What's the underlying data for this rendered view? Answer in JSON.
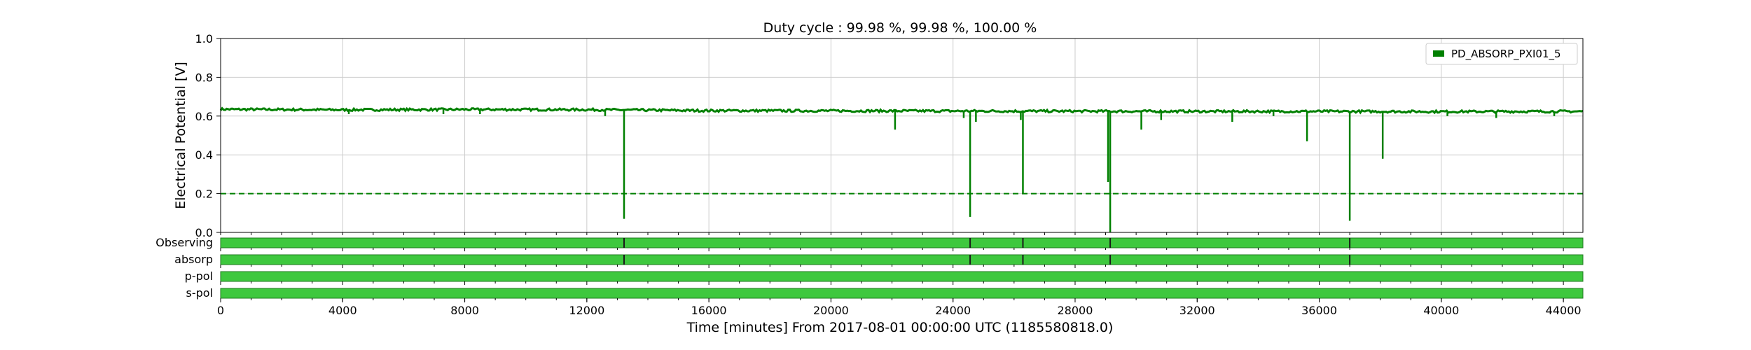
{
  "chart_data": {
    "type": "line",
    "title": "Duty cycle : 99.98 %, 99.98 %, 100.00 %",
    "xlabel": "Time [minutes] From 2017-08-01 00:00:00 UTC (1185580818.0)",
    "ylabel": "Electrical Potential [V]",
    "xlim": [
      0,
      44640
    ],
    "ylim": [
      0,
      1
    ],
    "x_ticks": [
      "0",
      "4000",
      "8000",
      "12000",
      "16000",
      "20000",
      "24000",
      "28000",
      "32000",
      "36000",
      "40000",
      "44000"
    ],
    "x_tick_values": [
      0,
      4000,
      8000,
      12000,
      16000,
      20000,
      24000,
      28000,
      32000,
      36000,
      40000,
      44000
    ],
    "y_ticks": [
      "0.0",
      "0.2",
      "0.4",
      "0.6",
      "0.8",
      "1.0"
    ],
    "y_tick_values": [
      0.0,
      0.2,
      0.4,
      0.6,
      0.8,
      1.0
    ],
    "grid": true,
    "legend_position": "top-right",
    "series": [
      {
        "name": "PD_ABSORP_PXI01_5",
        "color": "#008000",
        "baseline": 0.63,
        "x": [
          0,
          4000,
          8000,
          12000,
          16000,
          20000,
          24000,
          28000,
          32000,
          36000,
          40000,
          44640
        ],
        "y": [
          0.635,
          0.632,
          0.634,
          0.633,
          0.628,
          0.627,
          0.626,
          0.625,
          0.624,
          0.624,
          0.623,
          0.624
        ],
        "dips": [
          {
            "x": 4200,
            "y": 0.61
          },
          {
            "x": 7300,
            "y": 0.61
          },
          {
            "x": 8500,
            "y": 0.61
          },
          {
            "x": 12600,
            "y": 0.6
          },
          {
            "x": 13220,
            "y": 0.07
          },
          {
            "x": 22100,
            "y": 0.53
          },
          {
            "x": 24350,
            "y": 0.59
          },
          {
            "x": 24560,
            "y": 0.08
          },
          {
            "x": 24750,
            "y": 0.57
          },
          {
            "x": 26220,
            "y": 0.58
          },
          {
            "x": 26290,
            "y": 0.2
          },
          {
            "x": 29080,
            "y": 0.26
          },
          {
            "x": 29150,
            "y": 0.0
          },
          {
            "x": 30170,
            "y": 0.53
          },
          {
            "x": 30820,
            "y": 0.58
          },
          {
            "x": 33150,
            "y": 0.57
          },
          {
            "x": 34500,
            "y": 0.6
          },
          {
            "x": 35600,
            "y": 0.47
          },
          {
            "x": 37000,
            "y": 0.06
          },
          {
            "x": 38080,
            "y": 0.38
          },
          {
            "x": 40200,
            "y": 0.6
          },
          {
            "x": 41800,
            "y": 0.59
          },
          {
            "x": 43700,
            "y": 0.6
          }
        ]
      },
      {
        "name": "threshold",
        "color": "#008000",
        "dashed": true,
        "x": [
          0,
          44640
        ],
        "y": [
          0.2,
          0.2
        ]
      }
    ],
    "segments": {
      "color_active": "#3ec83e",
      "color_border": "#1f7a1f",
      "rows": [
        {
          "label": "Observing",
          "breaks": [
            13220,
            24560,
            26290,
            29150,
            37000
          ]
        },
        {
          "label": "absorp",
          "breaks": [
            13220,
            24560,
            26290,
            29150,
            37000
          ]
        },
        {
          "label": "p-pol",
          "breaks": []
        },
        {
          "label": "s-pol",
          "breaks": []
        }
      ]
    }
  }
}
